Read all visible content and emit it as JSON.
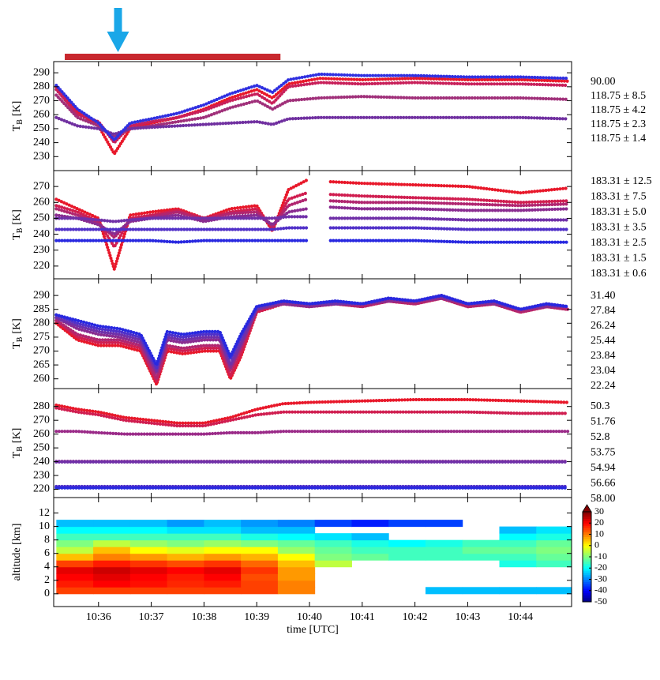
{
  "chart_data": [
    {
      "type": "scatter",
      "ylabel_main": "T",
      "ylabel_sub": "B",
      "ylabel_unit": "[K]",
      "xlim": [
        35.15,
        44.97
      ],
      "xticks": [
        36,
        37,
        38,
        39,
        40,
        41,
        42,
        43,
        44
      ],
      "ylim": [
        220,
        298
      ],
      "yticks": [
        230,
        240,
        250,
        260,
        270,
        280,
        290
      ],
      "highlight_segment": [
        35.36,
        39.45
      ],
      "highlight_color": "#c8282e",
      "arrow_x": 36.37,
      "arrow_color": "#1aa7e8",
      "x": [
        35.2,
        35.6,
        36.0,
        36.3,
        36.6,
        37.0,
        37.5,
        38.0,
        38.5,
        39.0,
        39.3,
        39.6,
        40.2,
        41.0,
        42.0,
        43.0,
        44.0,
        44.9
      ],
      "series": [
        {
          "name": "90.00",
          "color": "#e8182a",
          "values": [
            280,
            262,
            252,
            232,
            250,
            254,
            258,
            264,
            272,
            278,
            272,
            282,
            286,
            285,
            286,
            285,
            285,
            284
          ]
        },
        {
          "name": "118.75 ± 8.5",
          "color": "#c8205a",
          "values": [
            278,
            260,
            255,
            240,
            252,
            255,
            258,
            263,
            270,
            275,
            268,
            280,
            283,
            282,
            283,
            282,
            282,
            281
          ]
        },
        {
          "name": "118.75 ± 4.2",
          "color": "#a0307a",
          "values": [
            274,
            258,
            252,
            244,
            250,
            252,
            255,
            258,
            265,
            270,
            264,
            270,
            272,
            273,
            272,
            272,
            272,
            271
          ]
        },
        {
          "name": "118.75 ± 2.3",
          "color": "#7030a0",
          "values": [
            258,
            252,
            250,
            246,
            250,
            251,
            252,
            253,
            254,
            255,
            253,
            257,
            258,
            258,
            258,
            258,
            258,
            257
          ]
        },
        {
          "name": "118.75 ± 1.4",
          "color": "#3030e0",
          "values": [
            281,
            264,
            254,
            242,
            254,
            257,
            261,
            267,
            275,
            281,
            276,
            285,
            289,
            288,
            288,
            287,
            287,
            286
          ]
        }
      ]
    },
    {
      "type": "scatter",
      "ylabel_main": "T",
      "ylabel_sub": "B",
      "ylabel_unit": "[K]",
      "xlim": [
        35.15,
        44.97
      ],
      "xticks": [
        36,
        37,
        38,
        39,
        40,
        41,
        42,
        43,
        44
      ],
      "ylim": [
        212,
        280
      ],
      "yticks": [
        220,
        230,
        240,
        250,
        260,
        270
      ],
      "x": [
        35.2,
        35.6,
        36.0,
        36.3,
        36.6,
        37.0,
        37.5,
        38.0,
        38.5,
        39.0,
        39.3,
        39.6,
        39.95,
        40.15,
        40.4,
        41.0,
        42.0,
        43.0,
        44.0,
        44.9
      ],
      "series": [
        {
          "name": "183.31 ± 12.5",
          "color": "#e8182a",
          "values": [
            262,
            256,
            250,
            218,
            252,
            254,
            256,
            250,
            256,
            258,
            242,
            268,
            274,
            null,
            273,
            272,
            271,
            270,
            266,
            269
          ]
        },
        {
          "name": "183.31 ± 7.5",
          "color": "#d01e50",
          "values": [
            258,
            254,
            248,
            232,
            250,
            252,
            255,
            250,
            254,
            256,
            244,
            262,
            266,
            null,
            265,
            264,
            263,
            262,
            260,
            261
          ]
        },
        {
          "name": "183.31 ± 5.0",
          "color": "#b02670",
          "values": [
            256,
            252,
            247,
            238,
            249,
            251,
            254,
            249,
            253,
            254,
            245,
            258,
            262,
            null,
            261,
            260,
            260,
            259,
            258,
            259
          ]
        },
        {
          "name": "183.31 ± 3.5",
          "color": "#8a2c90",
          "values": [
            252,
            250,
            246,
            240,
            248,
            250,
            252,
            248,
            251,
            252,
            246,
            254,
            256,
            null,
            257,
            256,
            256,
            255,
            255,
            256
          ]
        },
        {
          "name": "183.31 ± 2.5",
          "color": "#7030a8",
          "values": [
            250,
            250,
            249,
            248,
            249,
            250,
            250,
            250,
            250,
            250,
            250,
            251,
            251,
            null,
            250,
            250,
            250,
            249,
            249,
            249
          ]
        },
        {
          "name": "183.31 ± 1.5",
          "color": "#5030c8",
          "values": [
            243,
            243,
            243,
            243,
            243,
            243,
            243,
            243,
            243,
            243,
            243,
            244,
            244,
            null,
            244,
            244,
            244,
            243,
            243,
            243
          ]
        },
        {
          "name": "183.31 ± 0.6",
          "color": "#2828e0",
          "values": [
            236,
            236,
            236,
            236,
            236,
            236,
            235,
            236,
            236,
            236,
            236,
            236,
            236,
            null,
            236,
            236,
            236,
            235,
            235,
            235
          ]
        }
      ]
    },
    {
      "type": "scatter",
      "ylabel_main": "T",
      "ylabel_sub": "B",
      "ylabel_unit": "[K]",
      "xlim": [
        35.15,
        44.97
      ],
      "xticks": [
        36,
        37,
        38,
        39,
        40,
        41,
        42,
        43,
        44
      ],
      "ylim": [
        256.5,
        296
      ],
      "yticks": [
        260,
        265,
        270,
        275,
        280,
        285,
        290
      ],
      "x": [
        35.2,
        35.6,
        36.0,
        36.4,
        36.8,
        37.1,
        37.3,
        37.6,
        38.0,
        38.3,
        38.5,
        38.7,
        39.0,
        39.5,
        40.0,
        40.5,
        41.0,
        41.5,
        42.0,
        42.5,
        43.0,
        43.5,
        44.0,
        44.5,
        44.9
      ],
      "series": [
        {
          "name": "31.40",
          "color": "#e8182a",
          "values": [
            280,
            274,
            272,
            272,
            270,
            258,
            270,
            269,
            270,
            270,
            260,
            268,
            284,
            287,
            286,
            287,
            286,
            288,
            287,
            289,
            286,
            287,
            284,
            286,
            285
          ]
        },
        {
          "name": "27.84",
          "color": "#d01e50",
          "values": [
            281,
            275,
            273,
            273,
            271,
            259,
            271,
            270,
            271,
            271,
            261,
            269,
            284,
            287,
            286,
            287,
            286,
            288,
            287,
            289,
            286,
            287,
            284,
            286,
            285
          ]
        },
        {
          "name": "26.24",
          "color": "#b02670",
          "values": [
            281,
            276,
            274,
            274,
            272,
            260,
            272,
            271,
            272,
            272,
            263,
            271,
            285,
            287,
            286,
            287,
            286,
            288,
            287,
            289,
            286,
            287,
            284,
            286,
            285
          ]
        },
        {
          "name": "25.44",
          "color": "#8a2c90",
          "values": [
            282,
            278,
            276,
            275,
            273,
            262,
            274,
            273,
            274,
            274,
            264,
            272,
            285,
            287,
            286,
            287,
            287,
            288,
            288,
            289,
            287,
            287,
            285,
            286,
            286
          ]
        },
        {
          "name": "23.84",
          "color": "#7030a8",
          "values": [
            282,
            279,
            277,
            276,
            274,
            263,
            275,
            274,
            275,
            275,
            265,
            273,
            285,
            288,
            287,
            287,
            287,
            289,
            288,
            290,
            287,
            288,
            285,
            287,
            286
          ]
        },
        {
          "name": "23.04",
          "color": "#5030c8",
          "values": [
            283,
            280,
            278,
            277,
            275,
            264,
            276,
            275,
            276,
            276,
            267,
            275,
            286,
            288,
            287,
            288,
            287,
            289,
            288,
            290,
            287,
            288,
            285,
            287,
            286
          ]
        },
        {
          "name": "22.24",
          "color": "#2828e0",
          "values": [
            283,
            281,
            279,
            278,
            276,
            265,
            277,
            276,
            277,
            277,
            268,
            276,
            286,
            288,
            287,
            288,
            287,
            289,
            288,
            290,
            287,
            288,
            285,
            287,
            286
          ]
        }
      ]
    },
    {
      "type": "scatter",
      "ylabel_main": "T",
      "ylabel_sub": "B",
      "ylabel_unit": "[K]",
      "xlim": [
        35.15,
        44.97
      ],
      "xticks": [
        36,
        37,
        38,
        39,
        40,
        41,
        42,
        43,
        44
      ],
      "ylim": [
        214,
        293
      ],
      "yticks": [
        220,
        230,
        240,
        250,
        260,
        270,
        280
      ],
      "x": [
        35.2,
        35.6,
        36.0,
        36.5,
        37.0,
        37.5,
        38.0,
        38.5,
        39.0,
        39.5,
        40.0,
        41.0,
        42.0,
        43.0,
        44.0,
        44.9
      ],
      "series": [
        {
          "name": "50.3",
          "color": "#e8182a",
          "values": [
            281,
            278,
            276,
            272,
            270,
            268,
            268,
            272,
            278,
            282,
            283,
            284,
            285,
            285,
            284,
            283
          ]
        },
        {
          "name": "51.76",
          "color": "#d01e50",
          "values": [
            279,
            276,
            274,
            270,
            268,
            266,
            266,
            270,
            274,
            276,
            276,
            276,
            276,
            276,
            275,
            275
          ]
        },
        {
          "name": "52.8",
          "color": "#9a2a88",
          "values": [
            262,
            262,
            261,
            260,
            260,
            260,
            260,
            261,
            261,
            262,
            262,
            262,
            262,
            262,
            262,
            262
          ]
        },
        {
          "name": "53.75",
          "color": "#8a2c90",
          "values": [
            240.2,
            240.2,
            240.2,
            240.2,
            240.2,
            240.2,
            240.2,
            240.2,
            240.2,
            240.2,
            240.2,
            240.2,
            240.2,
            240.2,
            240.2,
            240.2
          ]
        },
        {
          "name": "54.94",
          "color": "#7030a8",
          "values": [
            239.8,
            239.8,
            239.8,
            239.8,
            239.8,
            239.8,
            239.8,
            239.8,
            239.8,
            239.8,
            239.8,
            239.8,
            239.8,
            239.8,
            239.8,
            239.8
          ]
        },
        {
          "name": "56.66",
          "color": "#5030c8",
          "values": [
            222,
            222,
            222,
            222,
            222,
            222,
            222,
            222,
            222,
            222,
            222,
            222,
            222,
            222,
            222,
            222
          ]
        },
        {
          "name": "58.00",
          "color": "#2828e0",
          "values": [
            221,
            221,
            221,
            221,
            221,
            221,
            221,
            221,
            221,
            221,
            221,
            221,
            221,
            221,
            221,
            221
          ]
        }
      ]
    },
    {
      "type": "heatmap",
      "xlabel": "time [UTC]",
      "ylabel": "altitude [km]",
      "xlim": [
        35.15,
        44.97
      ],
      "xticks": [
        {
          "value": 36,
          "label": "10:36"
        },
        {
          "value": 37,
          "label": "10:37"
        },
        {
          "value": 38,
          "label": "10:38"
        },
        {
          "value": 39,
          "label": "10:39"
        },
        {
          "value": 40,
          "label": "10:40"
        },
        {
          "value": 41,
          "label": "10:41"
        },
        {
          "value": 42,
          "label": "10:42"
        },
        {
          "value": 43,
          "label": "10:43"
        },
        {
          "value": 44,
          "label": "10:44"
        }
      ],
      "ylim": [
        -1.9,
        14.3
      ],
      "yticks": [
        0,
        2,
        4,
        6,
        8,
        10,
        12
      ],
      "colormap": "jet",
      "clim": [
        -50,
        30
      ],
      "cticks": [
        -50,
        -40,
        -30,
        -20,
        -10,
        0,
        10,
        20,
        30
      ],
      "x_edges": [
        35.2,
        35.9,
        36.6,
        37.3,
        38.0,
        38.7,
        39.4,
        40.1,
        40.8,
        41.5,
        42.2,
        42.9,
        43.6,
        44.3,
        44.97
      ],
      "y_edges": [
        0,
        1,
        2,
        3,
        4,
        5,
        6,
        7,
        8,
        9,
        10,
        11
      ],
      "z": [
        [
          15,
          15,
          15,
          15,
          15,
          15,
          10,
          null,
          null,
          null,
          -25,
          -25,
          -25,
          -25
        ],
        [
          18,
          20,
          19,
          17,
          18,
          15,
          10,
          null,
          null,
          null,
          null,
          null,
          null,
          null
        ],
        [
          20,
          22,
          20,
          18,
          20,
          14,
          8,
          null,
          null,
          null,
          null,
          null,
          null,
          null
        ],
        [
          22,
          24,
          22,
          20,
          22,
          16,
          8,
          null,
          null,
          null,
          null,
          null,
          null,
          null
        ],
        [
          15,
          18,
          16,
          14,
          16,
          12,
          5,
          -5,
          null,
          null,
          null,
          null,
          -18,
          -15
        ],
        [
          5,
          10,
          8,
          6,
          8,
          6,
          0,
          -10,
          -12,
          -15,
          -15,
          -15,
          -15,
          -12
        ],
        [
          -5,
          5,
          0,
          -2,
          0,
          0,
          -8,
          -12,
          -15,
          -15,
          -15,
          -12,
          -12,
          -10
        ],
        [
          -10,
          -5,
          -8,
          -10,
          -8,
          -10,
          -12,
          -15,
          -18,
          -20,
          -18,
          -15,
          -15,
          -12
        ],
        [
          -15,
          -15,
          -15,
          -15,
          -15,
          -18,
          -20,
          -22,
          -25,
          null,
          null,
          null,
          -20,
          -18
        ],
        [
          -20,
          -20,
          -20,
          -22,
          -22,
          -25,
          -25,
          null,
          null,
          null,
          null,
          null,
          -25,
          -22
        ],
        [
          -25,
          -25,
          -25,
          -28,
          -25,
          -28,
          -30,
          -35,
          -38,
          -35,
          -35,
          null,
          null,
          null
        ]
      ]
    }
  ]
}
